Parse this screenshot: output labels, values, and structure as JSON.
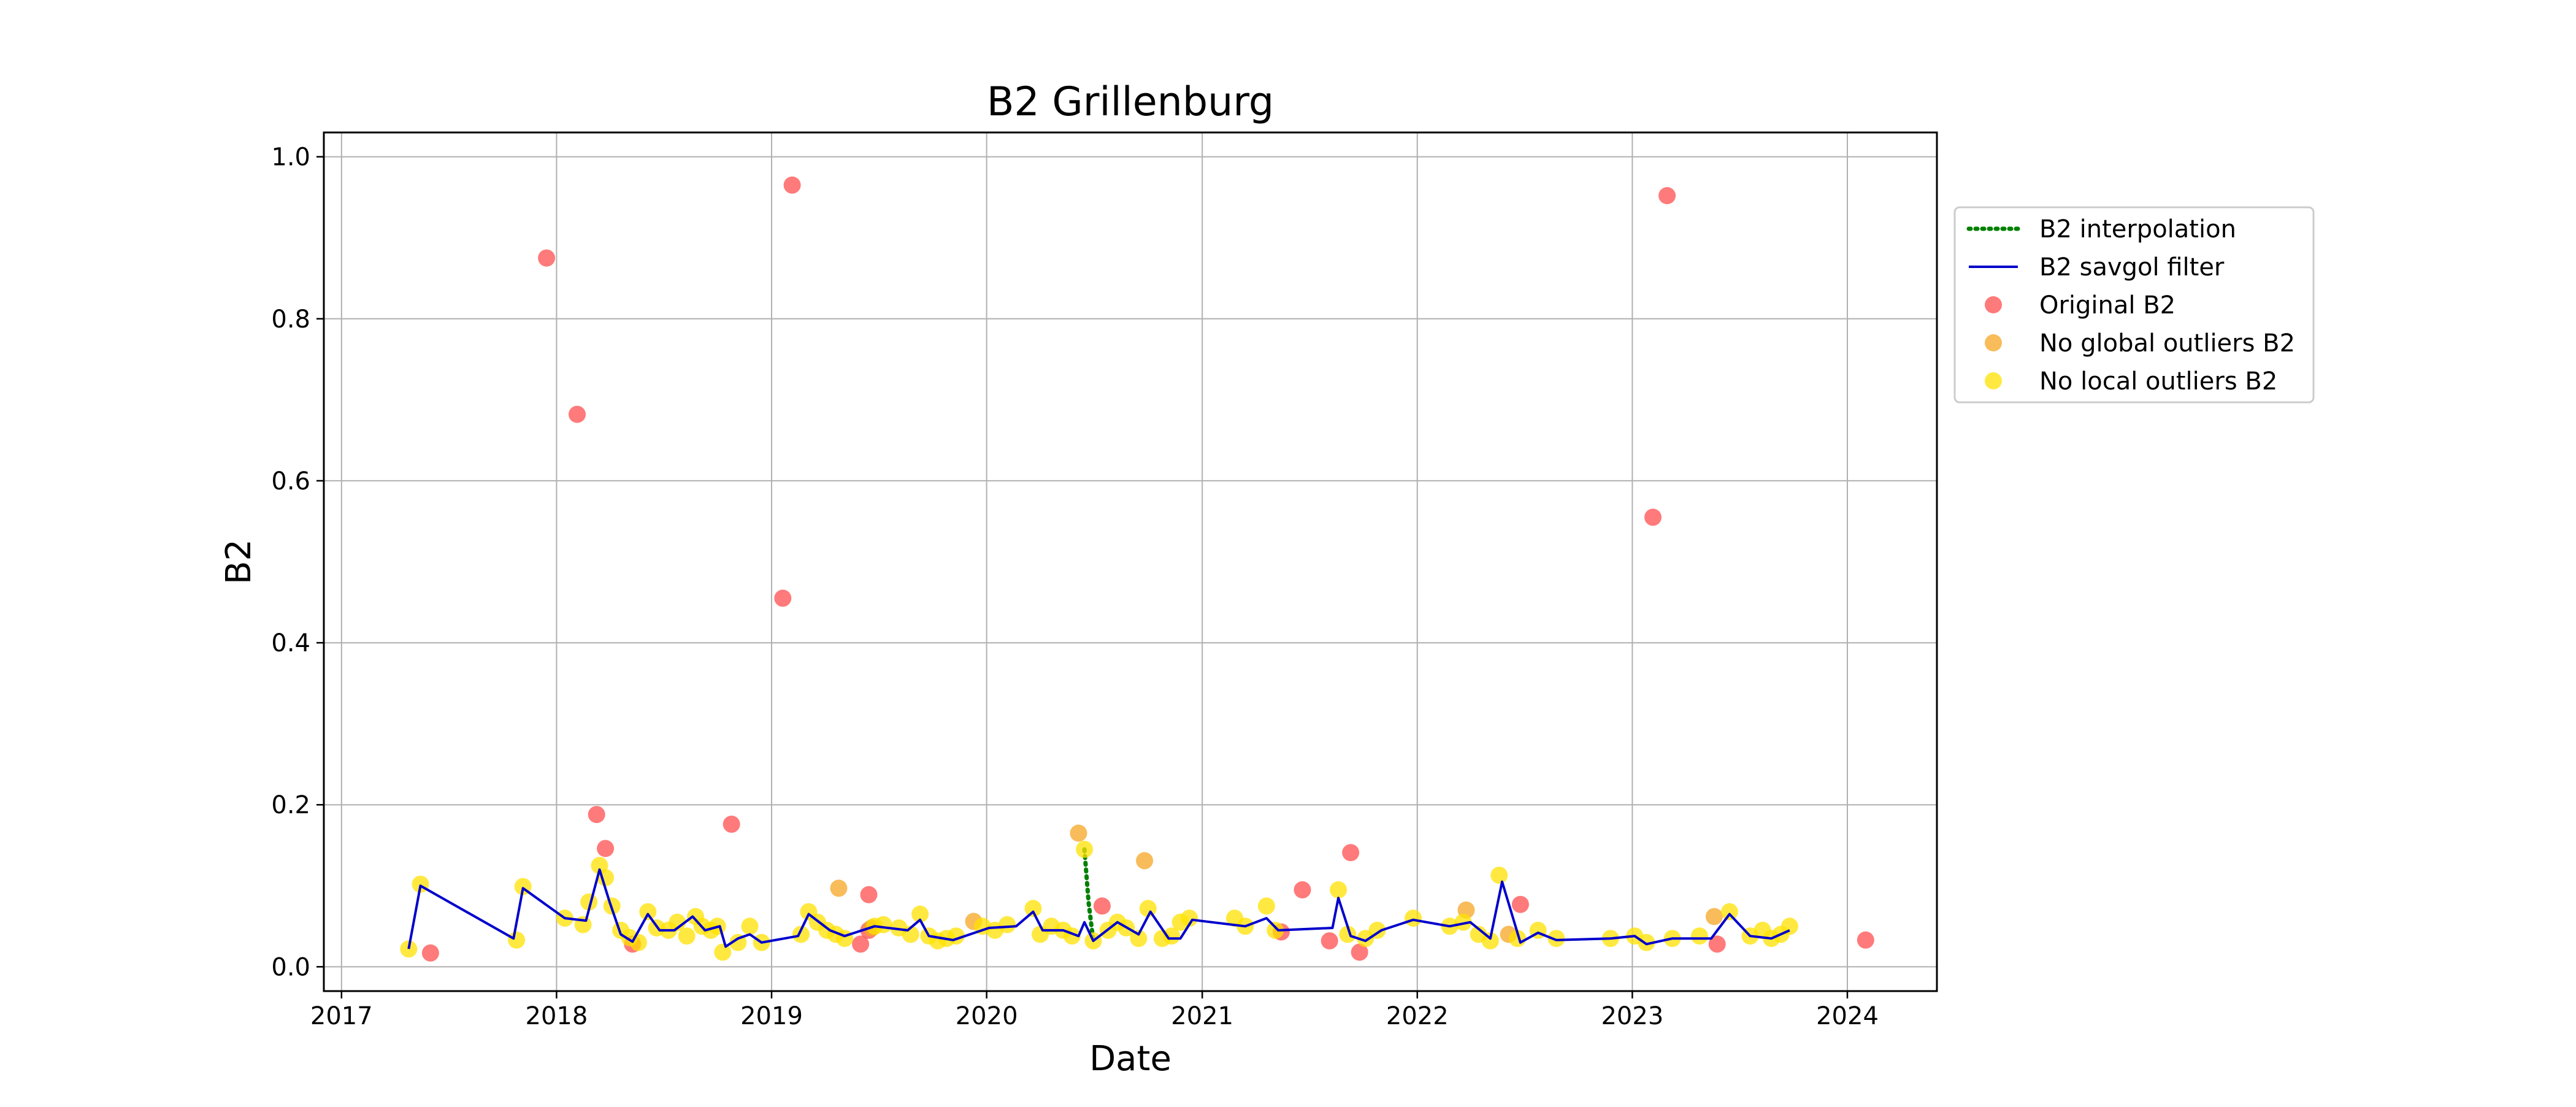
{
  "chart_data": {
    "type": "scatter",
    "title": "B2 Grillenburg",
    "xlabel": "Date",
    "ylabel": "B2",
    "xlim": [
      "2016-12-02",
      "2024-06-01"
    ],
    "ylim": [
      -0.03,
      1.03
    ],
    "x_ticks": [
      "2017",
      "2018",
      "2019",
      "2020",
      "2021",
      "2022",
      "2023",
      "2024"
    ],
    "y_ticks": [
      "0.0",
      "0.2",
      "0.4",
      "0.6",
      "0.8",
      "1.0"
    ],
    "grid": true,
    "legend_position": "outside right",
    "colors": {
      "interpolation": "#008000",
      "savgol": "#0000cc",
      "original": "#ff4d4d",
      "no_global": "#f5a623",
      "no_local": "#ffe100",
      "grid": "#b0b0b0"
    },
    "legend": [
      {
        "label": "B2 interpolation",
        "kind": "dotted-line",
        "color": "#008000"
      },
      {
        "label": "B2 savgol filter",
        "kind": "line",
        "color": "#0000cc"
      },
      {
        "label": "Original B2",
        "kind": "marker",
        "color": "#ff4d4d"
      },
      {
        "label": "No global outliers B2",
        "kind": "marker",
        "color": "#f5a623"
      },
      {
        "label": "No local outliers B2",
        "kind": "marker",
        "color": "#ffe100"
      }
    ],
    "series": [
      {
        "name": "Original B2",
        "points": [
          [
            "2017-06-01",
            0.017
          ],
          [
            "2017-12-15",
            0.875
          ],
          [
            "2018-02-05",
            0.682
          ],
          [
            "2018-03-10",
            0.188
          ],
          [
            "2018-03-25",
            0.146
          ],
          [
            "2018-05-10",
            0.028
          ],
          [
            "2018-10-25",
            0.176
          ],
          [
            "2019-01-20",
            0.455
          ],
          [
            "2019-02-05",
            0.965
          ],
          [
            "2019-06-01",
            0.028
          ],
          [
            "2019-06-15",
            0.089
          ],
          [
            "2019-06-15",
            0.045
          ],
          [
            "2020-07-15",
            0.075
          ],
          [
            "2021-05-15",
            0.043
          ],
          [
            "2021-06-20",
            0.095
          ],
          [
            "2021-08-05",
            0.032
          ],
          [
            "2021-09-10",
            0.141
          ],
          [
            "2021-09-25",
            0.018
          ],
          [
            "2022-06-25",
            0.077
          ],
          [
            "2023-02-05",
            0.555
          ],
          [
            "2023-03-01",
            0.952
          ],
          [
            "2023-05-25",
            0.028
          ],
          [
            "2024-02-01",
            0.033
          ]
        ]
      },
      {
        "name": "No global outliers B2",
        "points": [
          [
            "2019-04-25",
            0.097
          ],
          [
            "2019-06-20",
            0.048
          ],
          [
            "2019-12-10",
            0.056
          ],
          [
            "2020-06-05",
            0.165
          ],
          [
            "2020-09-25",
            0.131
          ],
          [
            "2022-03-25",
            0.07
          ],
          [
            "2022-06-05",
            0.04
          ],
          [
            "2023-05-20",
            0.062
          ]
        ]
      },
      {
        "name": "No local outliers B2",
        "points": [
          [
            "2017-04-25",
            0.022
          ],
          [
            "2017-05-15",
            0.102
          ],
          [
            "2017-10-25",
            0.033
          ],
          [
            "2017-11-05",
            0.099
          ],
          [
            "2018-01-15",
            0.06
          ],
          [
            "2018-02-15",
            0.052
          ],
          [
            "2018-02-25",
            0.08
          ],
          [
            "2018-03-15",
            0.125
          ],
          [
            "2018-03-25",
            0.11
          ],
          [
            "2018-04-05",
            0.075
          ],
          [
            "2018-04-20",
            0.045
          ],
          [
            "2018-05-05",
            0.036
          ],
          [
            "2018-05-20",
            0.03
          ],
          [
            "2018-06-05",
            0.068
          ],
          [
            "2018-06-20",
            0.048
          ],
          [
            "2018-07-10",
            0.045
          ],
          [
            "2018-07-25",
            0.055
          ],
          [
            "2018-08-10",
            0.038
          ],
          [
            "2018-08-25",
            0.062
          ],
          [
            "2018-09-05",
            0.05
          ],
          [
            "2018-09-20",
            0.045
          ],
          [
            "2018-10-01",
            0.05
          ],
          [
            "2018-10-10",
            0.018
          ],
          [
            "2018-11-05",
            0.03
          ],
          [
            "2018-11-25",
            0.05
          ],
          [
            "2018-12-15",
            0.03
          ],
          [
            "2019-02-20",
            0.04
          ],
          [
            "2019-03-05",
            0.068
          ],
          [
            "2019-03-20",
            0.055
          ],
          [
            "2019-04-05",
            0.045
          ],
          [
            "2019-04-20",
            0.04
          ],
          [
            "2019-05-05",
            0.035
          ],
          [
            "2019-06-25",
            0.05
          ],
          [
            "2019-07-10",
            0.052
          ],
          [
            "2019-08-05",
            0.048
          ],
          [
            "2019-08-25",
            0.04
          ],
          [
            "2019-09-10",
            0.065
          ],
          [
            "2019-09-25",
            0.038
          ],
          [
            "2019-10-10",
            0.032
          ],
          [
            "2019-10-25",
            0.035
          ],
          [
            "2019-11-10",
            0.038
          ],
          [
            "2019-12-25",
            0.05
          ],
          [
            "2020-01-15",
            0.045
          ],
          [
            "2020-02-05",
            0.052
          ],
          [
            "2020-03-20",
            0.072
          ],
          [
            "2020-04-01",
            0.04
          ],
          [
            "2020-04-20",
            0.05
          ],
          [
            "2020-05-10",
            0.045
          ],
          [
            "2020-05-25",
            0.038
          ],
          [
            "2020-06-15",
            0.145
          ],
          [
            "2020-06-30",
            0.032
          ],
          [
            "2020-07-25",
            0.045
          ],
          [
            "2020-08-10",
            0.055
          ],
          [
            "2020-08-25",
            0.048
          ],
          [
            "2020-09-15",
            0.035
          ],
          [
            "2020-10-01",
            0.072
          ],
          [
            "2020-10-25",
            0.035
          ],
          [
            "2020-11-10",
            0.038
          ],
          [
            "2020-11-25",
            0.055
          ],
          [
            "2020-12-10",
            0.06
          ],
          [
            "2021-02-25",
            0.06
          ],
          [
            "2021-03-15",
            0.05
          ],
          [
            "2021-04-20",
            0.075
          ],
          [
            "2021-05-05",
            0.045
          ],
          [
            "2021-08-20",
            0.095
          ],
          [
            "2021-09-05",
            0.04
          ],
          [
            "2021-10-05",
            0.035
          ],
          [
            "2021-10-25",
            0.045
          ],
          [
            "2021-12-25",
            0.06
          ],
          [
            "2022-02-25",
            0.05
          ],
          [
            "2022-03-20",
            0.055
          ],
          [
            "2022-04-15",
            0.04
          ],
          [
            "2022-05-05",
            0.032
          ],
          [
            "2022-05-20",
            0.113
          ],
          [
            "2022-06-20",
            0.035
          ],
          [
            "2022-07-25",
            0.045
          ],
          [
            "2022-08-25",
            0.035
          ],
          [
            "2022-11-25",
            0.035
          ],
          [
            "2023-01-05",
            0.038
          ],
          [
            "2023-01-25",
            0.03
          ],
          [
            "2023-03-10",
            0.035
          ],
          [
            "2023-04-25",
            0.038
          ],
          [
            "2023-06-15",
            0.068
          ],
          [
            "2023-07-20",
            0.038
          ],
          [
            "2023-08-10",
            0.045
          ],
          [
            "2023-08-25",
            0.035
          ],
          [
            "2023-09-10",
            0.04
          ],
          [
            "2023-09-25",
            0.05
          ]
        ]
      },
      {
        "name": "B2 savgol filter",
        "points": [
          [
            "2017-04-25",
            0.022
          ],
          [
            "2017-05-15",
            0.1
          ],
          [
            "2017-10-20",
            0.035
          ],
          [
            "2017-11-05",
            0.097
          ],
          [
            "2018-01-15",
            0.06
          ],
          [
            "2018-02-20",
            0.057
          ],
          [
            "2018-03-15",
            0.12
          ],
          [
            "2018-04-01",
            0.08
          ],
          [
            "2018-04-20",
            0.04
          ],
          [
            "2018-05-10",
            0.031
          ],
          [
            "2018-06-05",
            0.065
          ],
          [
            "2018-06-25",
            0.045
          ],
          [
            "2018-07-20",
            0.045
          ],
          [
            "2018-08-20",
            0.062
          ],
          [
            "2018-09-10",
            0.045
          ],
          [
            "2018-10-05",
            0.05
          ],
          [
            "2018-10-15",
            0.025
          ],
          [
            "2018-11-05",
            0.035
          ],
          [
            "2018-11-25",
            0.04
          ],
          [
            "2018-12-15",
            0.03
          ],
          [
            "2019-02-15",
            0.038
          ],
          [
            "2019-03-05",
            0.065
          ],
          [
            "2019-04-10",
            0.045
          ],
          [
            "2019-05-05",
            0.038
          ],
          [
            "2019-06-25",
            0.05
          ],
          [
            "2019-08-20",
            0.045
          ],
          [
            "2019-09-10",
            0.058
          ],
          [
            "2019-09-25",
            0.038
          ],
          [
            "2019-11-05",
            0.033
          ],
          [
            "2020-01-05",
            0.048
          ],
          [
            "2020-02-20",
            0.05
          ],
          [
            "2020-03-20",
            0.068
          ],
          [
            "2020-04-05",
            0.045
          ],
          [
            "2020-05-10",
            0.045
          ],
          [
            "2020-06-05",
            0.038
          ],
          [
            "2020-06-15",
            0.055
          ],
          [
            "2020-06-30",
            0.032
          ],
          [
            "2020-08-10",
            0.055
          ],
          [
            "2020-09-15",
            0.04
          ],
          [
            "2020-10-05",
            0.068
          ],
          [
            "2020-11-05",
            0.035
          ],
          [
            "2020-11-25",
            0.035
          ],
          [
            "2020-12-15",
            0.058
          ],
          [
            "2021-03-15",
            0.05
          ],
          [
            "2021-04-20",
            0.06
          ],
          [
            "2021-05-10",
            0.045
          ],
          [
            "2021-08-10",
            0.048
          ],
          [
            "2021-08-20",
            0.085
          ],
          [
            "2021-09-10",
            0.038
          ],
          [
            "2021-10-05",
            0.032
          ],
          [
            "2021-11-01",
            0.045
          ],
          [
            "2021-12-25",
            0.058
          ],
          [
            "2022-02-25",
            0.05
          ],
          [
            "2022-04-01",
            0.055
          ],
          [
            "2022-05-05",
            0.035
          ],
          [
            "2022-05-25",
            0.105
          ],
          [
            "2022-06-25",
            0.03
          ],
          [
            "2022-07-25",
            0.042
          ],
          [
            "2022-08-25",
            0.033
          ],
          [
            "2022-11-25",
            0.035
          ],
          [
            "2023-01-05",
            0.038
          ],
          [
            "2023-01-25",
            0.028
          ],
          [
            "2023-03-10",
            0.035
          ],
          [
            "2023-05-15",
            0.035
          ],
          [
            "2023-06-15",
            0.065
          ],
          [
            "2023-07-20",
            0.038
          ],
          [
            "2023-08-25",
            0.035
          ],
          [
            "2023-09-25",
            0.045
          ]
        ]
      },
      {
        "name": "B2 interpolation",
        "points": [
          [
            "2020-06-15",
            0.145
          ],
          [
            "2020-06-22",
            0.08
          ],
          [
            "2020-06-30",
            0.032
          ]
        ]
      }
    ]
  }
}
